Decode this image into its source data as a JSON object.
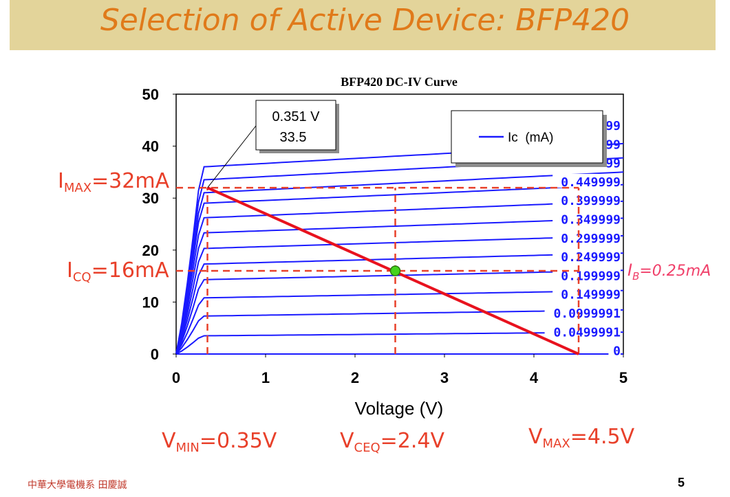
{
  "slide": {
    "title": "Selection of Active Device: BFP420",
    "footer": "中華大學電機系 田慶誠",
    "page_number": "5"
  },
  "annotations": {
    "imax": {
      "main": "I",
      "sub": "MAX",
      "rest": "=32mA"
    },
    "icq": {
      "main": "I",
      "sub": "CQ",
      "rest": "=16mA"
    },
    "vmin": {
      "main": "V",
      "sub": "MIN",
      "rest": "=0.35V"
    },
    "vceq": {
      "main": "V",
      "sub": "CEQ",
      "rest": "=2.4V"
    },
    "vmax": {
      "main": "V",
      "sub": "MAX",
      "rest": "=4.5V"
    },
    "ib_note": "I_B = 0.25mA"
  },
  "chart_data": {
    "type": "line",
    "title": "BFP420 DC-IV Curve",
    "xlabel": "Voltage (V)",
    "ylabel": "",
    "xlim": [
      0,
      5
    ],
    "ylim": [
      0,
      50
    ],
    "xticks": [
      "0",
      "1",
      "2",
      "3",
      "4",
      "5"
    ],
    "yticks": [
      "0",
      "10",
      "20",
      "30",
      "40",
      "50"
    ],
    "legend": {
      "label": "Ic  (mA)",
      "position": "top-right"
    },
    "tooltip": {
      "line1": "0.351 V",
      "line2": "33.5",
      "x": 0.351,
      "y": 33.5
    },
    "series_color": "#1a1aff",
    "curve_labels": [
      "99",
      "99",
      "99",
      "0.449999",
      "0.399999",
      "0.349999",
      "0.299999",
      "0.249999",
      "0.199999",
      "0.149999",
      "0.0999991",
      "0.0499991",
      "0"
    ],
    "curves": [
      {
        "ib": "0",
        "isat": 0.0,
        "slope": 0.0
      },
      {
        "ib": "0.0499991",
        "isat": 3.5,
        "slope": 0.15
      },
      {
        "ib": "0.0999991",
        "isat": 7.3,
        "slope": 0.25
      },
      {
        "ib": "0.149999",
        "isat": 10.8,
        "slope": 0.3
      },
      {
        "ib": "0.199999",
        "isat": 14.3,
        "slope": 0.38
      },
      {
        "ib": "0.249999",
        "isat": 17.3,
        "slope": 0.45
      },
      {
        "ib": "0.299999",
        "isat": 20.3,
        "slope": 0.52
      },
      {
        "ib": "0.349999",
        "isat": 23.3,
        "slope": 0.6
      },
      {
        "ib": "0.399999",
        "isat": 26.2,
        "slope": 0.68
      },
      {
        "ib": "0.449999",
        "isat": 29.0,
        "slope": 0.76
      },
      {
        "ib": "99",
        "isat": 31.0,
        "slope": 0.85
      },
      {
        "ib": "99",
        "isat": 33.5,
        "slope": 0.9
      },
      {
        "ib": "99",
        "isat": 36.0,
        "slope": 0.95
      }
    ],
    "load_line": {
      "x": [
        0.35,
        4.5
      ],
      "y": [
        32,
        0
      ],
      "color": "#e8121e"
    },
    "q_point": {
      "x": 2.45,
      "y": 16,
      "color": "#44d41e"
    },
    "guides": [
      {
        "orientation": "horizontal",
        "y": 32,
        "x_from": 0,
        "x_to": 4.5
      },
      {
        "orientation": "horizontal",
        "y": 16,
        "x_from": 0,
        "x_to": 4.5
      },
      {
        "orientation": "vertical",
        "x": 0.35,
        "y_from": 0,
        "y_to": 32
      },
      {
        "orientation": "vertical",
        "x": 2.45,
        "y_from": 0,
        "y_to": 32
      },
      {
        "orientation": "vertical",
        "x": 4.5,
        "y_from": 0,
        "y_to": 32
      }
    ],
    "guide_color": "#e8402a"
  }
}
